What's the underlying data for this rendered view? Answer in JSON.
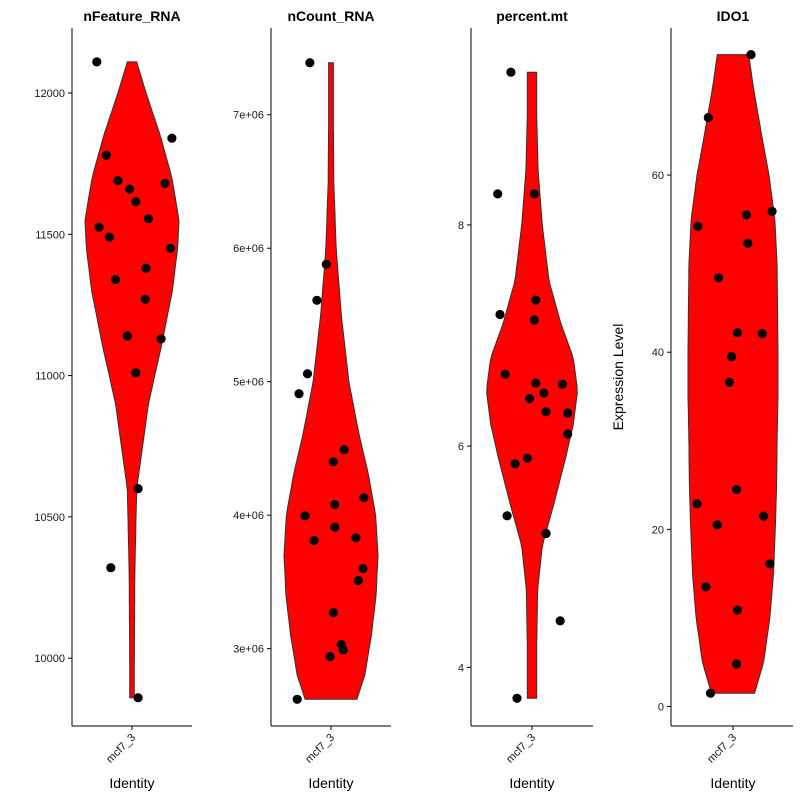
{
  "colors": {
    "violin_fill": "#ff0000",
    "violin_stroke": "#333333",
    "point": "#000000"
  },
  "chart_data": [
    {
      "type": "violin",
      "title": "nFeature_RNA",
      "xlabel": "Identity",
      "ylabel": "",
      "categories": [
        "mcf7_3"
      ],
      "ylim": [
        9760,
        12230
      ],
      "yticks": [
        10000,
        10500,
        11000,
        11500,
        12000
      ],
      "ytick_labels": [
        "10000",
        "10500",
        "11000",
        "11500",
        "12000"
      ],
      "range": [
        9860,
        12110
      ],
      "density": [
        [
          9860,
          0.05
        ],
        [
          10000,
          0.05
        ],
        [
          10300,
          0.06
        ],
        [
          10600,
          0.1
        ],
        [
          10900,
          0.35
        ],
        [
          11100,
          0.62
        ],
        [
          11300,
          0.86
        ],
        [
          11450,
          0.97
        ],
        [
          11550,
          1.0
        ],
        [
          11700,
          0.85
        ],
        [
          11850,
          0.6
        ],
        [
          12000,
          0.3
        ],
        [
          12110,
          0.1
        ]
      ],
      "points": [
        {
          "value": 12110,
          "jitter": -0.75
        },
        {
          "value": 11840,
          "jitter": 0.85
        },
        {
          "value": 11780,
          "jitter": -0.55
        },
        {
          "value": 11690,
          "jitter": -0.3
        },
        {
          "value": 11680,
          "jitter": 0.7
        },
        {
          "value": 11660,
          "jitter": -0.05
        },
        {
          "value": 11615,
          "jitter": 0.08
        },
        {
          "value": 11555,
          "jitter": 0.35
        },
        {
          "value": 11525,
          "jitter": -0.7
        },
        {
          "value": 11490,
          "jitter": -0.48
        },
        {
          "value": 11450,
          "jitter": 0.82
        },
        {
          "value": 11380,
          "jitter": 0.3
        },
        {
          "value": 11340,
          "jitter": -0.35
        },
        {
          "value": 11270,
          "jitter": 0.28
        },
        {
          "value": 11140,
          "jitter": -0.1
        },
        {
          "value": 11130,
          "jitter": 0.62
        },
        {
          "value": 11010,
          "jitter": 0.08
        },
        {
          "value": 10600,
          "jitter": 0.13
        },
        {
          "value": 10320,
          "jitter": -0.45
        },
        {
          "value": 9860,
          "jitter": 0.13
        }
      ]
    },
    {
      "type": "violin",
      "title": "nCount_RNA",
      "xlabel": "Identity",
      "ylabel": "",
      "categories": [
        "mcf7_3"
      ],
      "ylim": [
        2420000,
        7650000
      ],
      "yticks": [
        3000000,
        4000000,
        5000000,
        6000000,
        7000000
      ],
      "ytick_labels": [
        "3e+06",
        "4e+06",
        "5e+06",
        "6e+06",
        "7e+06"
      ],
      "range": [
        2620000,
        7390000
      ],
      "density": [
        [
          2620000,
          0.55
        ],
        [
          2800000,
          0.72
        ],
        [
          3100000,
          0.86
        ],
        [
          3400000,
          0.96
        ],
        [
          3700000,
          1.0
        ],
        [
          4000000,
          0.95
        ],
        [
          4300000,
          0.8
        ],
        [
          4600000,
          0.6
        ],
        [
          5000000,
          0.38
        ],
        [
          5500000,
          0.22
        ],
        [
          6000000,
          0.11
        ],
        [
          6500000,
          0.06
        ],
        [
          7000000,
          0.05
        ],
        [
          7390000,
          0.05
        ]
      ],
      "points": [
        {
          "value": 7390000,
          "jitter": -0.45
        },
        {
          "value": 5880000,
          "jitter": -0.1
        },
        {
          "value": 5610000,
          "jitter": -0.3
        },
        {
          "value": 5060000,
          "jitter": -0.5
        },
        {
          "value": 4910000,
          "jitter": -0.68
        },
        {
          "value": 4490000,
          "jitter": 0.28
        },
        {
          "value": 4400000,
          "jitter": 0.05
        },
        {
          "value": 4130000,
          "jitter": 0.7
        },
        {
          "value": 4080000,
          "jitter": 0.08
        },
        {
          "value": 3995000,
          "jitter": -0.55
        },
        {
          "value": 3910000,
          "jitter": 0.08
        },
        {
          "value": 3830000,
          "jitter": 0.53
        },
        {
          "value": 3810000,
          "jitter": -0.36
        },
        {
          "value": 3600000,
          "jitter": 0.68
        },
        {
          "value": 3510000,
          "jitter": 0.58
        },
        {
          "value": 3270000,
          "jitter": 0.05
        },
        {
          "value": 3030000,
          "jitter": 0.22
        },
        {
          "value": 2990000,
          "jitter": 0.26
        },
        {
          "value": 2940000,
          "jitter": -0.02
        },
        {
          "value": 2620000,
          "jitter": -0.72
        }
      ]
    },
    {
      "type": "violin",
      "title": "percent.mt",
      "xlabel": "Identity",
      "ylabel": "",
      "categories": [
        "mcf7_3"
      ],
      "ylim": [
        3.47,
        9.78
      ],
      "yticks": [
        4,
        6,
        8
      ],
      "ytick_labels": [
        "4",
        "6",
        "8"
      ],
      "range": [
        3.72,
        9.38
      ],
      "density": [
        [
          3.72,
          0.1
        ],
        [
          4.2,
          0.1
        ],
        [
          4.7,
          0.12
        ],
        [
          5.1,
          0.22
        ],
        [
          5.5,
          0.48
        ],
        [
          5.9,
          0.72
        ],
        [
          6.2,
          0.88
        ],
        [
          6.5,
          0.97
        ],
        [
          6.8,
          0.88
        ],
        [
          7.1,
          0.62
        ],
        [
          7.5,
          0.36
        ],
        [
          8.0,
          0.22
        ],
        [
          8.5,
          0.13
        ],
        [
          9.0,
          0.1
        ],
        [
          9.38,
          0.1
        ]
      ],
      "points": [
        {
          "value": 9.38,
          "jitter": -0.45
        },
        {
          "value": 8.28,
          "jitter": -0.73
        },
        {
          "value": 8.28,
          "jitter": 0.05
        },
        {
          "value": 7.32,
          "jitter": 0.08
        },
        {
          "value": 7.19,
          "jitter": -0.68
        },
        {
          "value": 7.14,
          "jitter": 0.05
        },
        {
          "value": 6.65,
          "jitter": -0.57
        },
        {
          "value": 6.57,
          "jitter": 0.08
        },
        {
          "value": 6.56,
          "jitter": 0.65
        },
        {
          "value": 6.48,
          "jitter": 0.25
        },
        {
          "value": 6.43,
          "jitter": -0.05
        },
        {
          "value": 6.31,
          "jitter": 0.3
        },
        {
          "value": 6.3,
          "jitter": 0.76
        },
        {
          "value": 6.11,
          "jitter": 0.76
        },
        {
          "value": 5.89,
          "jitter": -0.1
        },
        {
          "value": 5.84,
          "jitter": -0.36
        },
        {
          "value": 5.37,
          "jitter": -0.53
        },
        {
          "value": 5.21,
          "jitter": 0.3
        },
        {
          "value": 4.42,
          "jitter": 0.6
        },
        {
          "value": 3.72,
          "jitter": -0.32
        }
      ]
    },
    {
      "type": "violin",
      "title": "IDO1",
      "xlabel": "Identity",
      "ylabel": "Expression Level",
      "categories": [
        "mcf7_3"
      ],
      "ylim": [
        -2.2,
        76.6
      ],
      "yticks": [
        0,
        20,
        40,
        60
      ],
      "ytick_labels": [
        "0",
        "20",
        "40",
        "60"
      ],
      "range": [
        1.5,
        73.6
      ],
      "density": [
        [
          1.5,
          0.48
        ],
        [
          5,
          0.68
        ],
        [
          10,
          0.82
        ],
        [
          15,
          0.9
        ],
        [
          20,
          0.94
        ],
        [
          25,
          0.97
        ],
        [
          30,
          0.98
        ],
        [
          35,
          1.0
        ],
        [
          40,
          1.0
        ],
        [
          45,
          0.99
        ],
        [
          50,
          0.98
        ],
        [
          55,
          0.93
        ],
        [
          60,
          0.8
        ],
        [
          65,
          0.62
        ],
        [
          70,
          0.45
        ],
        [
          73.6,
          0.35
        ]
      ],
      "points": [
        {
          "value": 73.6,
          "jitter": 0.4
        },
        {
          "value": 66.5,
          "jitter": -0.55
        },
        {
          "value": 55.9,
          "jitter": 0.87
        },
        {
          "value": 55.5,
          "jitter": 0.3
        },
        {
          "value": 54.2,
          "jitter": -0.78
        },
        {
          "value": 52.3,
          "jitter": 0.33
        },
        {
          "value": 48.4,
          "jitter": -0.32
        },
        {
          "value": 42.2,
          "jitter": 0.1
        },
        {
          "value": 42.1,
          "jitter": 0.65
        },
        {
          "value": 39.5,
          "jitter": -0.03
        },
        {
          "value": 36.6,
          "jitter": -0.08
        },
        {
          "value": 24.5,
          "jitter": 0.08
        },
        {
          "value": 22.9,
          "jitter": -0.8
        },
        {
          "value": 21.5,
          "jitter": 0.68
        },
        {
          "value": 20.5,
          "jitter": -0.35
        },
        {
          "value": 16.1,
          "jitter": 0.82
        },
        {
          "value": 13.5,
          "jitter": -0.6
        },
        {
          "value": 10.9,
          "jitter": 0.1
        },
        {
          "value": 4.8,
          "jitter": 0.08
        },
        {
          "value": 1.5,
          "jitter": -0.5
        }
      ]
    }
  ]
}
